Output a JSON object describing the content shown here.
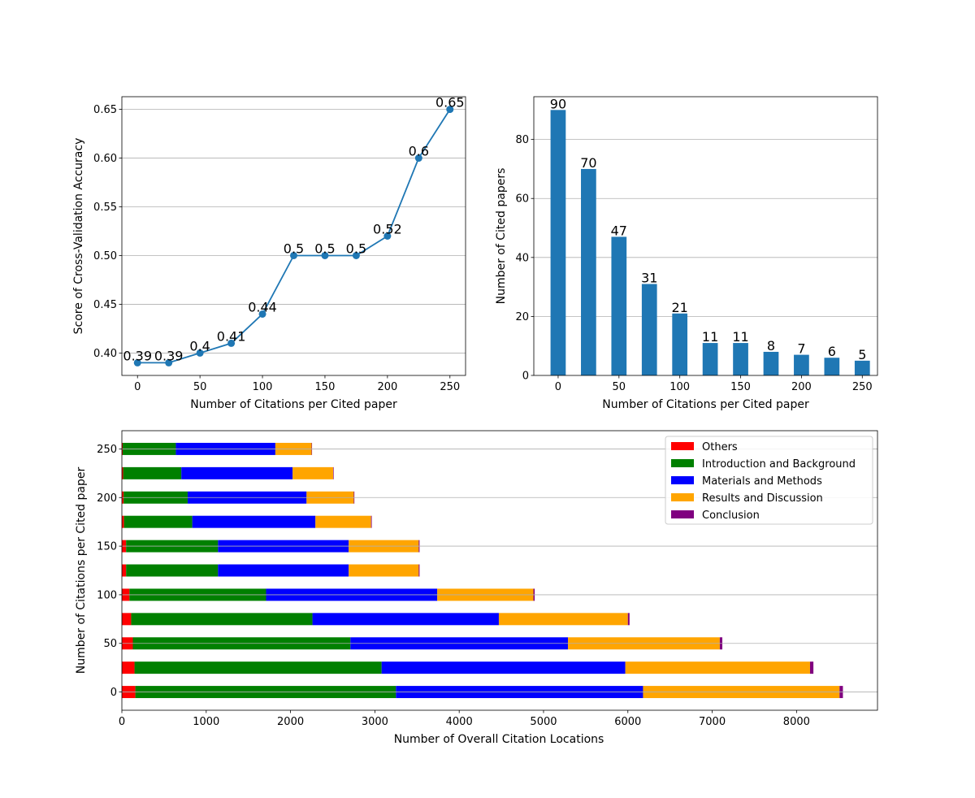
{
  "chart_data": [
    {
      "type": "line",
      "x": [
        0,
        25,
        50,
        75,
        100,
        125,
        150,
        175,
        200,
        225,
        250
      ],
      "y": [
        0.39,
        0.39,
        0.4,
        0.41,
        0.44,
        0.5,
        0.5,
        0.5,
        0.52,
        0.6,
        0.65
      ],
      "point_labels": [
        "0.39",
        "0.39",
        "0.4",
        "0.41",
        "0.44",
        "0.5",
        "0.5",
        "0.5",
        "0.52",
        "0.6",
        "0.65"
      ],
      "xlabel": "Number of Citations per Cited paper",
      "ylabel": "Score of Cross-Validation Accuracy",
      "xlim": [
        -12.5,
        262.5
      ],
      "ylim": [
        0.377,
        0.663
      ],
      "xticks": [
        0,
        50,
        100,
        150,
        200,
        250
      ],
      "xtick_labels": [
        "0",
        "50",
        "100",
        "150",
        "200",
        "250"
      ],
      "yticks": [
        0.4,
        0.45,
        0.5,
        0.55,
        0.6,
        0.65
      ],
      "ytick_labels": [
        "0.40",
        "0.45",
        "0.50",
        "0.55",
        "0.60",
        "0.65"
      ],
      "grid": "horizontal",
      "color": "#1f77b4"
    },
    {
      "type": "bar",
      "x": [
        0,
        25,
        50,
        75,
        100,
        125,
        150,
        175,
        200,
        225,
        250
      ],
      "values": [
        90,
        70,
        47,
        31,
        21,
        11,
        11,
        8,
        7,
        6,
        5
      ],
      "value_labels": [
        "90",
        "70",
        "47",
        "31",
        "21",
        "11",
        "11",
        "8",
        "7",
        "6",
        "5"
      ],
      "xlabel": "Number of Citations per Cited paper",
      "ylabel": "Number of Cited papers",
      "xlim": [
        -20,
        262.5
      ],
      "ylim": [
        0,
        94.5
      ],
      "xticks": [
        0,
        50,
        100,
        150,
        200,
        250
      ],
      "xtick_labels": [
        "0",
        "50",
        "100",
        "150",
        "200",
        "250"
      ],
      "yticks": [
        0,
        20,
        40,
        60,
        80
      ],
      "ytick_labels": [
        "0",
        "20",
        "40",
        "60",
        "80"
      ],
      "grid": "horizontal",
      "color": "#1f77b4"
    },
    {
      "type": "bar",
      "orientation": "horizontal",
      "stacked": true,
      "categories": [
        0,
        25,
        50,
        75,
        100,
        125,
        150,
        175,
        200,
        225,
        250
      ],
      "series": [
        {
          "name": "Others",
          "color": "#ff0000",
          "values": [
            160,
            150,
            130,
            110,
            90,
            50,
            50,
            25,
            20,
            15,
            10
          ]
        },
        {
          "name": "Introduction and Background",
          "color": "#008000",
          "values": [
            3090,
            2930,
            2580,
            2150,
            1620,
            1090,
            1090,
            810,
            760,
            690,
            630
          ]
        },
        {
          "name": "Materials and Methods",
          "color": "#0000ff",
          "values": [
            2930,
            2890,
            2580,
            2210,
            2030,
            1550,
            1550,
            1460,
            1410,
            1320,
            1180
          ]
        },
        {
          "name": "Results and Discussion",
          "color": "#ffa500",
          "values": [
            2330,
            2190,
            1800,
            1530,
            1140,
            830,
            830,
            660,
            560,
            480,
            430
          ]
        },
        {
          "name": "Conclusion",
          "color": "#800080",
          "values": [
            40,
            40,
            30,
            20,
            15,
            10,
            10,
            8,
            7,
            6,
            5
          ]
        }
      ],
      "xlabel": "Number of Overall Citation Locations",
      "ylabel": "Number of Citations per Cited paper",
      "xlim": [
        0,
        8960
      ],
      "ylim": [
        -18.75,
        268.75
      ],
      "xticks": [
        0,
        1000,
        2000,
        3000,
        4000,
        5000,
        6000,
        7000,
        8000
      ],
      "xtick_labels": [
        "0",
        "1000",
        "2000",
        "3000",
        "4000",
        "5000",
        "6000",
        "7000",
        "8000"
      ],
      "yticks": [
        0,
        50,
        100,
        150,
        200,
        250
      ],
      "ytick_labels": [
        "0",
        "50",
        "100",
        "150",
        "200",
        "250"
      ],
      "grid": "horizontal",
      "legend": "top-right"
    }
  ]
}
